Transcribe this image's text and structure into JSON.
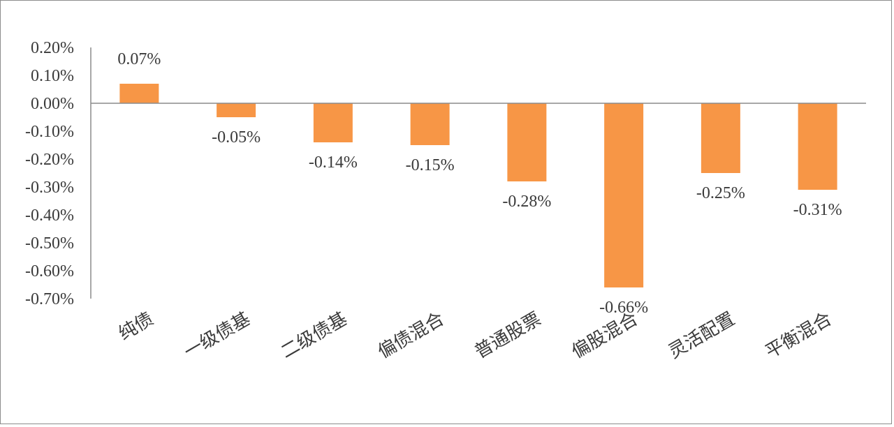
{
  "chart_data": {
    "type": "bar",
    "title": "",
    "xlabel": "",
    "ylabel": "",
    "categories": [
      "纯债",
      "一级债基",
      "二级债基",
      "偏债混合",
      "普通股票",
      "偏股混合",
      "灵活配置",
      "平衡混合"
    ],
    "values": [
      0.07,
      -0.05,
      -0.14,
      -0.15,
      -0.28,
      -0.66,
      -0.25,
      -0.31
    ],
    "data_labels": [
      "0.07%",
      "-0.05%",
      "-0.14%",
      "-0.15%",
      "-0.28%",
      "-0.66%",
      "-0.25%",
      "-0.31%"
    ],
    "ylim": [
      -0.7,
      0.2
    ],
    "yticks": [
      0.2,
      0.1,
      0.0,
      -0.1,
      -0.2,
      -0.3,
      -0.4,
      -0.5,
      -0.6,
      -0.7
    ],
    "ytick_labels": [
      "0.20%",
      "0.10%",
      "0.00%",
      "-0.10%",
      "-0.20%",
      "-0.30%",
      "-0.40%",
      "-0.50%",
      "-0.60%",
      "-0.70%"
    ],
    "unit": "%",
    "grid": false,
    "legend": "none",
    "bar_color": "#F79646",
    "axis_color": "#8c8c8c"
  }
}
